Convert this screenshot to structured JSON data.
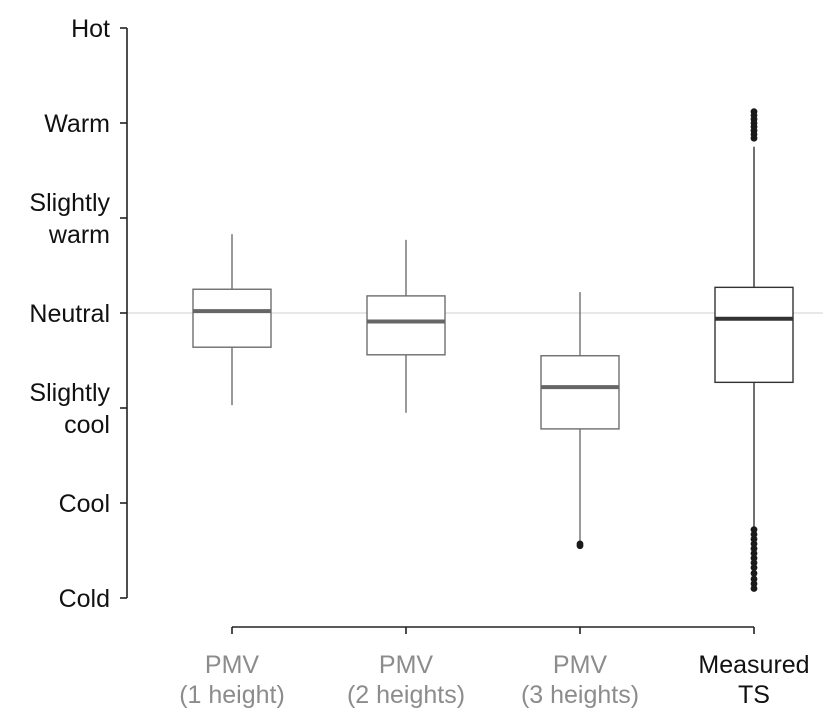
{
  "chart_data": {
    "type": "box",
    "ylim": [
      -3,
      3
    ],
    "y_ticks": [
      {
        "value": 3,
        "label": [
          "Hot"
        ]
      },
      {
        "value": 2,
        "label": [
          "Warm"
        ]
      },
      {
        "value": 1,
        "label": [
          "Slightly",
          "warm"
        ]
      },
      {
        "value": 0,
        "label": [
          "Neutral"
        ]
      },
      {
        "value": -1,
        "label": [
          "Slightly",
          "cool"
        ]
      },
      {
        "value": -2,
        "label": [
          "Cool"
        ]
      },
      {
        "value": -3,
        "label": [
          "Cold"
        ]
      }
    ],
    "reference_line": 0,
    "grid": false,
    "series": [
      {
        "label": [
          "PMV",
          "(1 height)"
        ],
        "label_color": "#8c8c8c",
        "box_color": "#6e6e6e",
        "median_color": "#666666",
        "whisker_low": -0.97,
        "q1": -0.36,
        "median": 0.02,
        "q3": 0.25,
        "whisker_high": 0.83,
        "outliers": []
      },
      {
        "label": [
          "PMV",
          "(2 heights)"
        ],
        "label_color": "#8c8c8c",
        "box_color": "#6e6e6e",
        "median_color": "#666666",
        "whisker_low": -1.05,
        "q1": -0.44,
        "median": -0.09,
        "q3": 0.18,
        "whisker_high": 0.77,
        "outliers": []
      },
      {
        "label": [
          "PMV",
          "(3 heights)"
        ],
        "label_color": "#8c8c8c",
        "box_color": "#6e6e6e",
        "median_color": "#666666",
        "whisker_low": -2.4,
        "q1": -1.22,
        "median": -0.78,
        "q3": -0.45,
        "whisker_high": 0.22,
        "outliers": [
          -2.43,
          -2.45
        ]
      },
      {
        "label": [
          "Measured",
          "TS"
        ],
        "label_color": "#111111",
        "box_color": "#333333",
        "median_color": "#333333",
        "whisker_low": -2.25,
        "q1": -0.73,
        "median": -0.06,
        "q3": 0.27,
        "whisker_high": 1.75,
        "outliers": [
          2.12,
          2.08,
          2.04,
          2.0,
          1.96,
          1.92,
          1.88,
          1.84,
          -2.28,
          -2.33,
          -2.38,
          -2.43,
          -2.48,
          -2.53,
          -2.58,
          -2.63,
          -2.68,
          -2.74,
          -2.8,
          -2.85,
          -2.9
        ]
      }
    ]
  }
}
